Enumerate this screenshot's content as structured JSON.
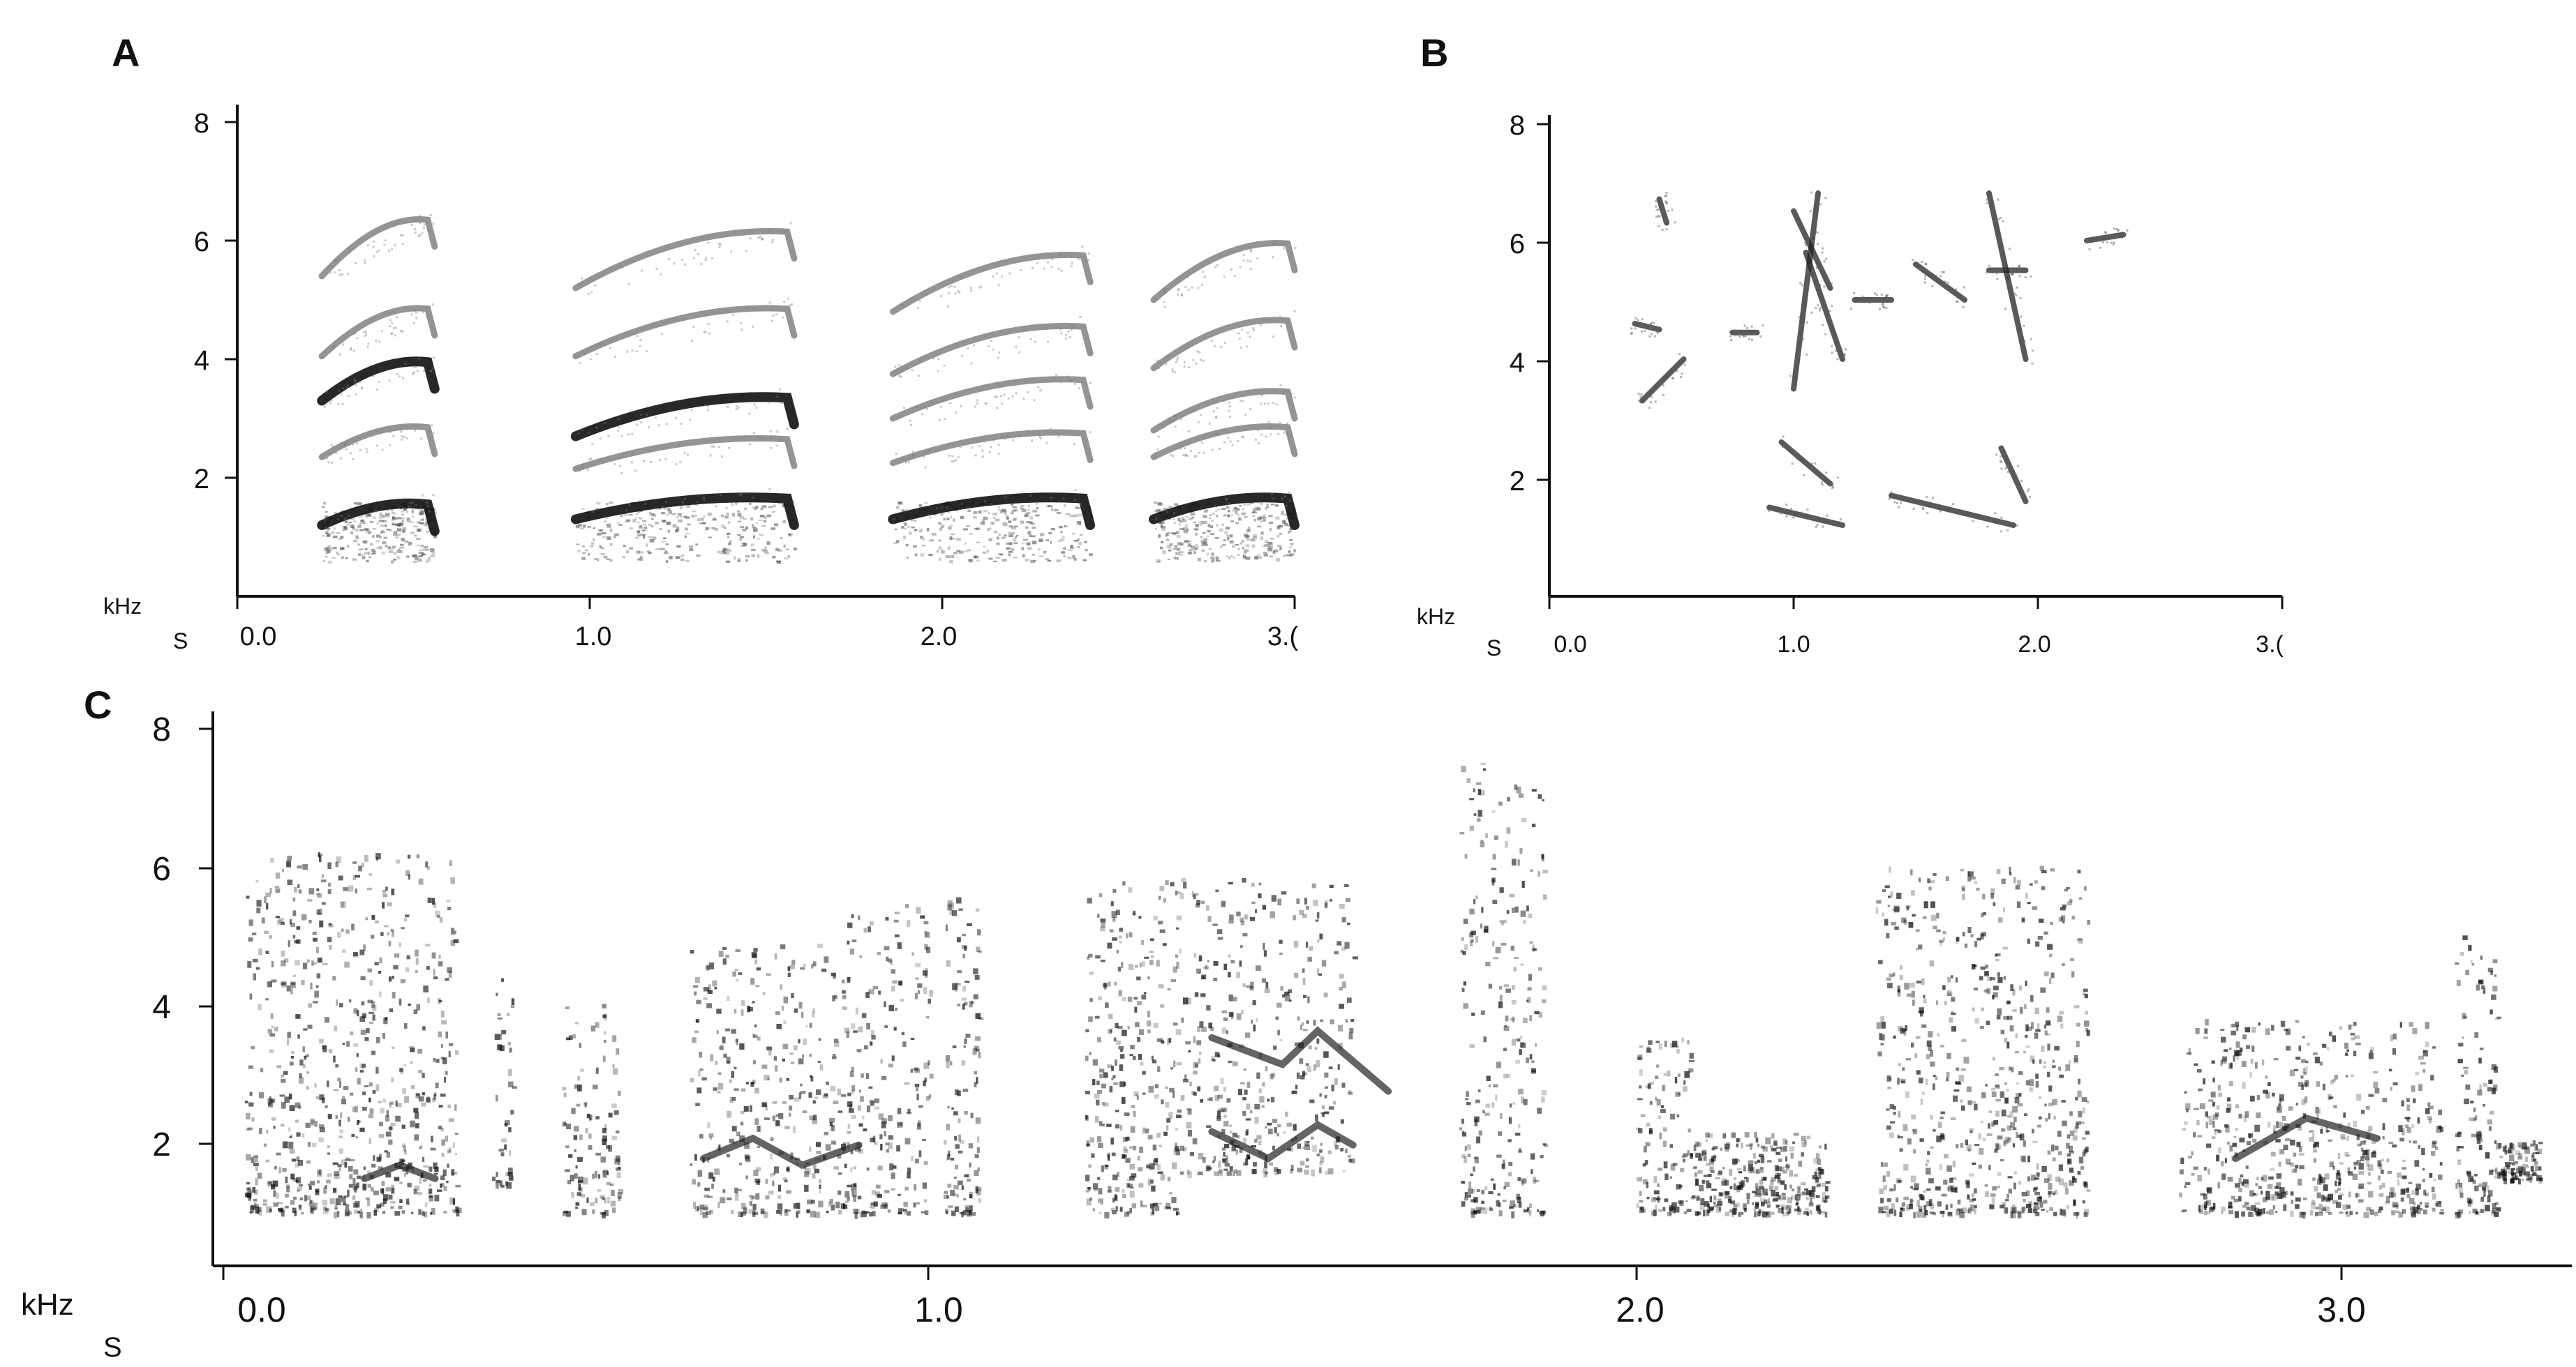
{
  "panels": [
    {
      "id": "A",
      "letter": "A",
      "y_unit": "kHz",
      "x_unit": "S",
      "y_ticks": [
        "2",
        "4",
        "6",
        "8"
      ],
      "x_ticks": [
        "0.0",
        "1.0",
        "2.0",
        "3.("
      ],
      "y_range": [
        0,
        8
      ],
      "x_range": [
        0,
        3
      ],
      "syllables": [
        {
          "t0": 0.24,
          "t1": 0.56,
          "harmonics": [
            1.5,
            2.8,
            3.9,
            4.8,
            6.3
          ],
          "dark": [
            0,
            2
          ]
        },
        {
          "t0": 0.96,
          "t1": 1.58,
          "harmonics": [
            1.6,
            2.6,
            3.3,
            4.8,
            6.1
          ],
          "dark": [
            0,
            2
          ]
        },
        {
          "t0": 1.86,
          "t1": 2.42,
          "harmonics": [
            1.6,
            2.7,
            3.6,
            4.5,
            5.7
          ],
          "dark": [
            0
          ]
        },
        {
          "t0": 2.6,
          "t1": 3.0,
          "harmonics": [
            1.6,
            2.8,
            3.4,
            4.6,
            5.9
          ],
          "dark": [
            0
          ]
        }
      ]
    },
    {
      "id": "B",
      "letter": "B",
      "y_unit": "kHz",
      "x_unit": "S",
      "y_ticks": [
        "2",
        "4",
        "6",
        "8"
      ],
      "x_ticks": [
        "0.0",
        "1.0",
        "2.0",
        "3.("
      ],
      "y_range": [
        0,
        8
      ],
      "x_range": [
        0,
        3
      ]
    },
    {
      "id": "C",
      "letter": "C",
      "y_unit": "kHz",
      "x_unit": "S",
      "y_ticks": [
        "2",
        "4",
        "6",
        "8"
      ],
      "x_ticks": [
        "0.0",
        "1.0",
        "2.0",
        "3.0"
      ],
      "y_range": [
        0,
        8
      ],
      "x_range": [
        0,
        3.3
      ]
    }
  ]
}
